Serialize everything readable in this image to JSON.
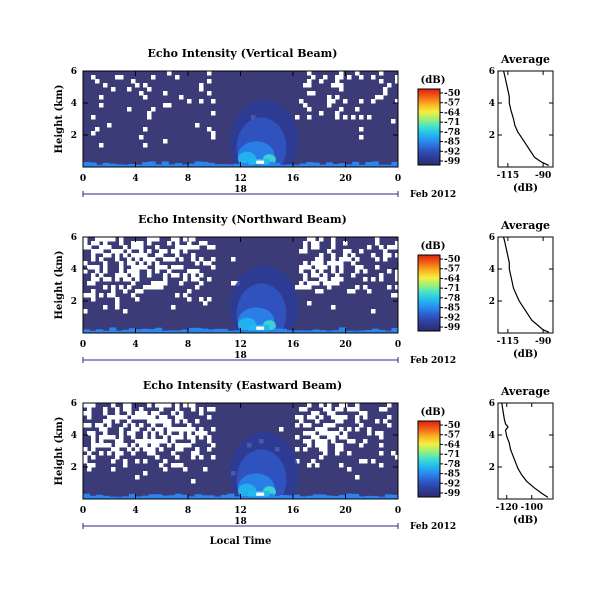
{
  "figure": {
    "xlabel": "Local Time",
    "date_label": "Feb 2012",
    "day_label": "18",
    "colorbar_unit": "(dB)",
    "colorbar_ticks": [
      "-50",
      "-57",
      "-64",
      "-71",
      "-78",
      "-85",
      "-92",
      "-99"
    ],
    "colorscale": [
      "#2b2c6e",
      "#2d3c96",
      "#2f57c6",
      "#2a86ee",
      "#22b8f0",
      "#3fe0d0",
      "#9af07a",
      "#f4f040",
      "#fab020",
      "#f26018",
      "#e02010"
    ],
    "background_color": "#3b3b78"
  },
  "chart_data": [
    {
      "type": "heatmap",
      "title": "Echo Intensity (Vertical Beam)",
      "ylabel": "Height (km)",
      "x_ticks": [
        "0",
        "4",
        "8",
        "12",
        "16",
        "20",
        "0"
      ],
      "y_ticks": [
        "6",
        "4",
        "2"
      ],
      "xlim": [
        0,
        24
      ],
      "ylim": [
        0,
        6
      ],
      "profile": {
        "title": "Average",
        "xlabel": "(dB)",
        "x_ticks": [
          "-115",
          "-90"
        ],
        "y_ticks": [
          "6",
          "4",
          "2"
        ],
        "xlim": [
          -122,
          -83
        ],
        "ylim": [
          0,
          6
        ],
        "points": [
          [
            -118,
            6.0
          ],
          [
            -117,
            5.6
          ],
          [
            -116,
            5.2
          ],
          [
            -115,
            4.8
          ],
          [
            -114,
            4.4
          ],
          [
            -114,
            4.0
          ],
          [
            -113,
            3.6
          ],
          [
            -112,
            3.3
          ],
          [
            -111,
            3.0
          ],
          [
            -110,
            2.6
          ],
          [
            -108,
            2.2
          ],
          [
            -105,
            1.8
          ],
          [
            -102,
            1.4
          ],
          [
            -99,
            1.0
          ],
          [
            -96,
            0.6
          ],
          [
            -91,
            0.3
          ],
          [
            -86,
            0.1
          ]
        ]
      }
    },
    {
      "type": "heatmap",
      "title": "Echo Intensity (Northward Beam)",
      "ylabel": "Height (km)",
      "x_ticks": [
        "0",
        "4",
        "8",
        "12",
        "16",
        "20",
        "0"
      ],
      "y_ticks": [
        "6",
        "4",
        "2"
      ],
      "xlim": [
        0,
        24
      ],
      "ylim": [
        0,
        6
      ],
      "profile": {
        "title": "Average",
        "xlabel": "(dB)",
        "x_ticks": [
          "-115",
          "-90"
        ],
        "y_ticks": [
          "6",
          "4",
          "2"
        ],
        "xlim": [
          -122,
          -83
        ],
        "ylim": [
          0,
          6
        ],
        "points": [
          [
            -118,
            6.0
          ],
          [
            -117,
            5.6
          ],
          [
            -116,
            5.2
          ],
          [
            -115,
            4.8
          ],
          [
            -114,
            4.4
          ],
          [
            -114,
            4.0
          ],
          [
            -113,
            3.6
          ],
          [
            -112,
            3.2
          ],
          [
            -111,
            2.8
          ],
          [
            -109,
            2.4
          ],
          [
            -107,
            2.0
          ],
          [
            -104,
            1.6
          ],
          [
            -101,
            1.2
          ],
          [
            -98,
            0.8
          ],
          [
            -94,
            0.5
          ],
          [
            -90,
            0.2
          ],
          [
            -86,
            0.05
          ]
        ]
      }
    },
    {
      "type": "heatmap",
      "title": "Echo Intensity (Eastward Beam)",
      "ylabel": "Height (km)",
      "x_ticks": [
        "0",
        "4",
        "8",
        "12",
        "16",
        "20",
        "0"
      ],
      "y_ticks": [
        "6",
        "4",
        "2"
      ],
      "xlim": [
        0,
        24
      ],
      "ylim": [
        0,
        6
      ],
      "profile": {
        "title": "Average",
        "xlabel": "(dB)",
        "x_ticks": [
          "-120",
          "-100"
        ],
        "y_ticks": [
          "6",
          "4",
          "2"
        ],
        "xlim": [
          -127,
          -83
        ],
        "ylim": [
          0,
          6
        ],
        "points": [
          [
            -124,
            6.0
          ],
          [
            -123,
            5.5
          ],
          [
            -122,
            5.0
          ],
          [
            -121,
            4.7
          ],
          [
            -119,
            4.5
          ],
          [
            -121,
            4.3
          ],
          [
            -120,
            3.9
          ],
          [
            -118,
            3.5
          ],
          [
            -117,
            3.1
          ],
          [
            -115,
            2.7
          ],
          [
            -113,
            2.3
          ],
          [
            -111,
            1.9
          ],
          [
            -108,
            1.5
          ],
          [
            -104,
            1.1
          ],
          [
            -98,
            0.7
          ],
          [
            -92,
            0.35
          ],
          [
            -87,
            0.1
          ]
        ]
      }
    }
  ]
}
